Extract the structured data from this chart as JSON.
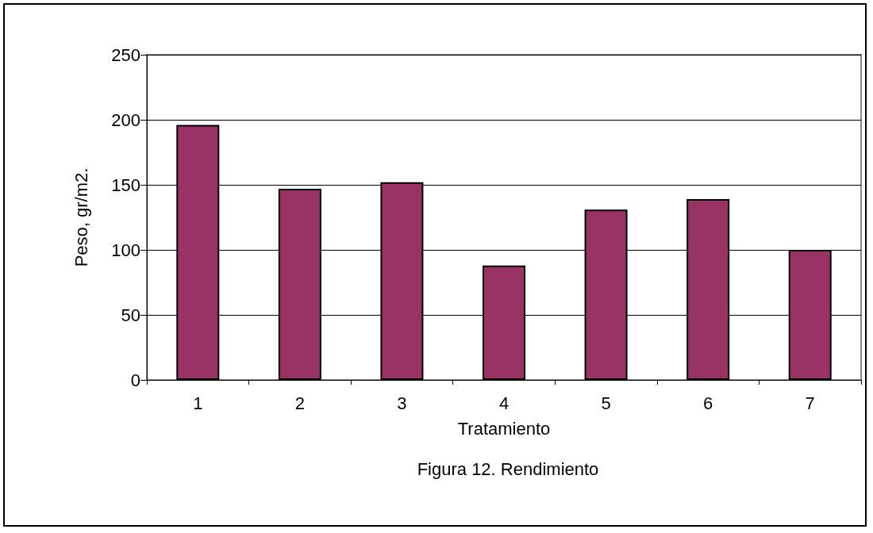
{
  "chart_data": {
    "type": "bar",
    "title": "Figura 12. Rendimiento",
    "xlabel": "Tratamiento",
    "ylabel": "Peso, gr/m2.",
    "categories": [
      "1",
      "2",
      "3",
      "4",
      "5",
      "6",
      "7"
    ],
    "values": [
      196,
      147,
      152,
      88,
      131,
      139,
      100
    ],
    "color": "#993366",
    "ylim": [
      0,
      250
    ],
    "yticks": [
      0,
      50,
      100,
      150,
      200,
      250
    ],
    "grid": "y"
  }
}
